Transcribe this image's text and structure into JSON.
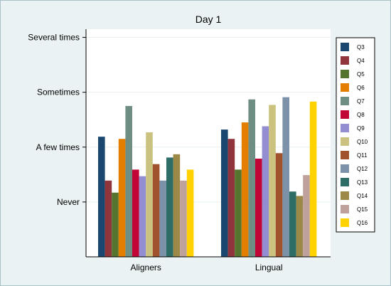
{
  "chart_data": {
    "type": "bar",
    "title": "Day 1",
    "xlabel": "",
    "ylabel": "",
    "categories": [
      "Aligners",
      "Lingual"
    ],
    "y_ticks": [
      {
        "value": 1,
        "label": "Never"
      },
      {
        "value": 2,
        "label": "A few times"
      },
      {
        "value": 3,
        "label": "Sometimes"
      },
      {
        "value": 4,
        "label": "Several times"
      }
    ],
    "ylim": [
      0,
      4.15
    ],
    "grid": true,
    "legend_position": "right",
    "series": [
      {
        "name": "Q3",
        "color": "#1a476f",
        "values": [
          2.19,
          2.32
        ]
      },
      {
        "name": "Q4",
        "color": "#90353b",
        "values": [
          1.39,
          2.15
        ]
      },
      {
        "name": "Q5",
        "color": "#55752f",
        "values": [
          1.17,
          1.59
        ]
      },
      {
        "name": "Q6",
        "color": "#e37e00",
        "values": [
          2.15,
          2.45
        ]
      },
      {
        "name": "Q7",
        "color": "#6e8e84",
        "values": [
          2.75,
          2.87
        ]
      },
      {
        "name": "Q8",
        "color": "#c10534",
        "values": [
          1.59,
          1.79
        ]
      },
      {
        "name": "Q9",
        "color": "#938dd2",
        "values": [
          1.47,
          2.38
        ]
      },
      {
        "name": "Q10",
        "color": "#cac27e",
        "values": [
          2.27,
          2.77
        ]
      },
      {
        "name": "Q11",
        "color": "#a0522d",
        "values": [
          1.69,
          1.89
        ]
      },
      {
        "name": "Q12",
        "color": "#7b92a8",
        "values": [
          1.39,
          2.91
        ]
      },
      {
        "name": "Q13",
        "color": "#2d6d66",
        "values": [
          1.81,
          1.19
        ]
      },
      {
        "name": "Q14",
        "color": "#9c8847",
        "values": [
          1.87,
          1.11
        ]
      },
      {
        "name": "Q15",
        "color": "#bfa19c",
        "values": [
          1.39,
          1.49
        ]
      },
      {
        "name": "Q16",
        "color": "#ffd200",
        "values": [
          1.59,
          2.83
        ]
      }
    ]
  }
}
